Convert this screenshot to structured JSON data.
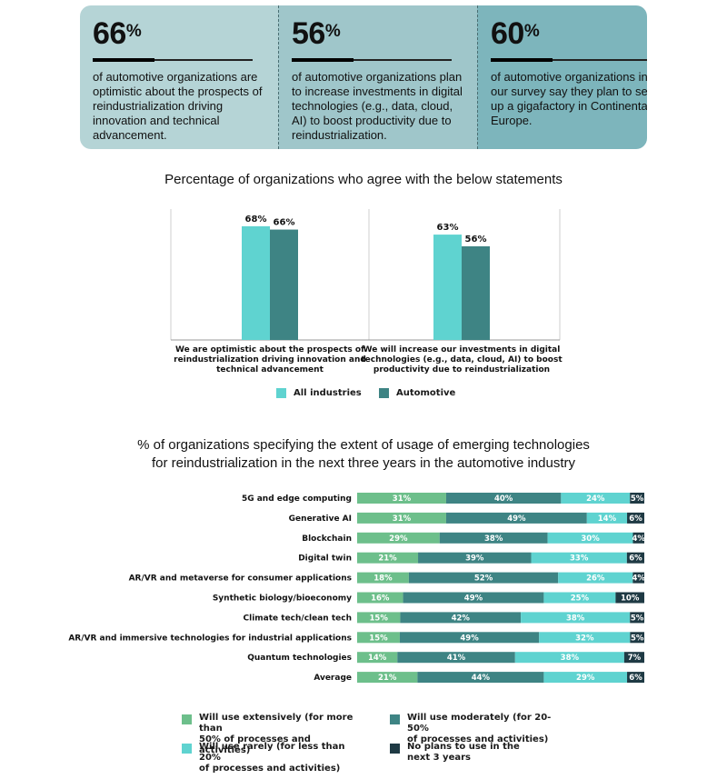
{
  "stats": [
    {
      "value": "66",
      "unit": "%",
      "text": "of automotive organizations are optimistic about the prospects of reindustrialization driving innovation and technical advancement."
    },
    {
      "value": "56",
      "unit": "%",
      "text": "of automotive organizations plan to increase investments in digital technologies (e.g., data, cloud, AI) to boost productivity due to reindustrialization."
    },
    {
      "value": "60",
      "unit": "%",
      "text": "of automotive organizations in our survey say they plan to set up a gigafactory in Continental Europe."
    }
  ],
  "colors": {
    "all_industries": "#5fd3d0",
    "automotive": "#3e8484",
    "extensively": "#6dbf8b",
    "moderately": "#3e8484",
    "rarely": "#5fd3d0",
    "no_plans": "#1f3a44"
  },
  "chart_data": [
    {
      "type": "bar",
      "title": "Percentage of organizations who agree with the below statements",
      "categories": [
        "We are optimistic about the prospects of reindustrialization driving innovation and technical advancement",
        "We will increase our investments in digital technologies (e.g., data, cloud, AI) to boost productivity due to reindustrialization"
      ],
      "category_lines": [
        [
          "We are optimistic about the prospects of",
          "reindustrialization driving innovation and",
          "technical advancement"
        ],
        [
          "We will increase our investments in digital",
          "technologies (e.g., data, cloud, AI) to boost",
          "productivity due to reindustrialization"
        ]
      ],
      "series": [
        {
          "name": "All industries",
          "values": [
            68,
            63
          ],
          "labels": [
            "68%",
            "63%"
          ]
        },
        {
          "name": "Automotive",
          "values": [
            66,
            56
          ],
          "labels": [
            "66%",
            "56%"
          ]
        }
      ],
      "ylim": [
        0,
        100
      ],
      "legend": "bottom"
    },
    {
      "type": "bar",
      "orientation": "horizontal",
      "stacked": true,
      "title": "% of organizations specifying the extent of usage of emerging technologies for reindustrialization in the next three years in the automotive industry",
      "title_lines": [
        "% of organizations specifying the extent of usage of emerging technologies",
        "for reindustrialization in the next three years in the automotive industry"
      ],
      "categories": [
        "5G and edge computing",
        "Generative AI",
        "Blockchain",
        "Digital twin",
        "AR/VR and metaverse for consumer applications",
        "Synthetic biology/bioeconomy",
        "Climate tech/clean tech",
        "AR/VR and immersive technologies for industrial applications",
        "Quantum technologies",
        "Average"
      ],
      "series": [
        {
          "name": "Will use extensively (for more than 50% of processes and activities)",
          "legend_lines": [
            "Will use extensively (for more than",
            "50% of processes and activities)"
          ],
          "values": [
            31,
            31,
            29,
            21,
            18,
            16,
            15,
            15,
            14,
            21
          ]
        },
        {
          "name": "Will use moderately (for 20-50% of processes and activities)",
          "legend_lines": [
            "Will use moderately (for 20-50%",
            "of processes and activities)"
          ],
          "values": [
            40,
            49,
            38,
            39,
            52,
            49,
            42,
            49,
            41,
            44
          ]
        },
        {
          "name": "Will use rarely (for less than 20% of processes and activities)",
          "legend_lines": [
            "Will use rarely (for less than 20%",
            "of processes and activities)"
          ],
          "values": [
            24,
            14,
            30,
            33,
            26,
            25,
            38,
            32,
            38,
            29
          ]
        },
        {
          "name": "No plans to use in the next 3 years",
          "legend_lines": [
            "No plans to use in the",
            "next 3 years"
          ],
          "values": [
            5,
            6,
            4,
            6,
            4,
            10,
            5,
            5,
            7,
            6
          ]
        }
      ],
      "value_suffix": "%",
      "legend": "bottom"
    }
  ]
}
